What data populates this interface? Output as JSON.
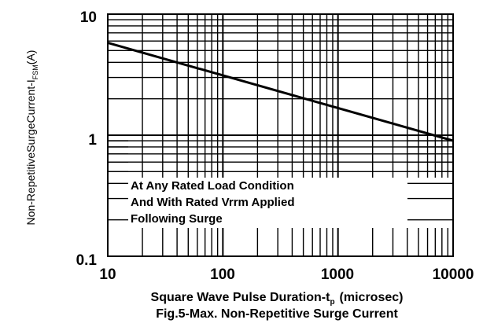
{
  "chart_data": {
    "type": "line",
    "x_scale": "log",
    "y_scale": "log",
    "xlim": [
      10,
      10000
    ],
    "ylim": [
      0.1,
      10
    ],
    "x_ticks": [
      "10",
      "100",
      "1000",
      "10000"
    ],
    "y_ticks": [
      "0.1",
      "1",
      "10"
    ],
    "grid": true,
    "series": [
      {
        "x": [
          10,
          10000
        ],
        "y": [
          5.8,
          0.9
        ]
      }
    ],
    "ylabel_main": "Non-RepetitiveSurgeCurrent-I",
    "ylabel_sub": "FSM",
    "ylabel_unit": "(A)",
    "xlabel_main": "Square Wave Pulse Duration-t",
    "xlabel_sub": "p",
    "xlabel_unit": "(microsec)",
    "annotations": [
      "At Any Rated Load Condition",
      "And With Rated Vrrm Applied",
      "Following Surge"
    ],
    "caption": "Fig.5-Max. Non-Repetitive Surge Current"
  }
}
